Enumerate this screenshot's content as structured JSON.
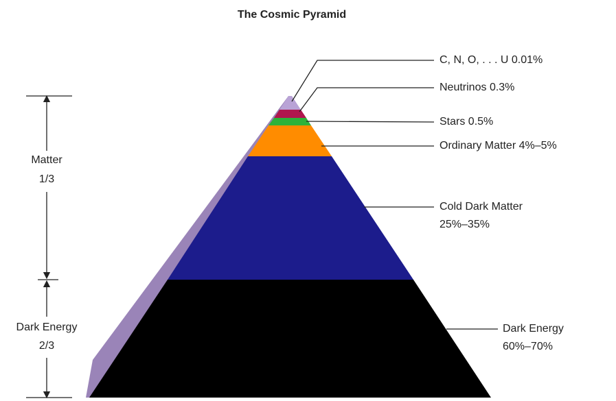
{
  "title": "The Cosmic Pyramid",
  "components": [
    {
      "name": "C, N, O, . . . U",
      "share": "0.01%"
    },
    {
      "name": "Neutrinos",
      "share": "0.3%"
    },
    {
      "name": "Stars",
      "share": "0.5%"
    },
    {
      "name": "Ordinary Matter",
      "share": "4%–5%"
    },
    {
      "name": "Cold Dark Matter",
      "share": "25%–35%"
    },
    {
      "name": "Dark Energy",
      "share": "60%–70%"
    }
  ],
  "groups": [
    {
      "name": "Matter",
      "fraction": "1/3"
    },
    {
      "name": "Dark Energy",
      "fraction": "2/3"
    }
  ]
}
